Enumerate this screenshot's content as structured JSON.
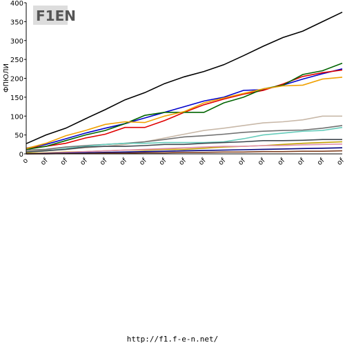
{
  "chart_data": {
    "type": "line",
    "logo": "F1EN",
    "y_label": "ФПЮЛИ",
    "footer": "http://f1.f-e-n.net/",
    "categories": [
      "o",
      "of",
      "of",
      "of",
      "of",
      "of",
      "of",
      "of",
      "of",
      "of",
      "of",
      "of",
      "of",
      "of",
      "of",
      "of",
      "of"
    ],
    "ylim": [
      0,
      400
    ],
    "yticks": [
      0,
      50,
      100,
      150,
      200,
      250,
      300,
      350,
      400
    ],
    "grid": false,
    "series": [
      {
        "color": "#000000",
        "values": [
          27,
          50,
          68,
          93,
          117,
          143,
          162,
          186,
          204,
          218,
          236,
          260,
          285,
          308,
          325,
          350,
          375
        ]
      },
      {
        "color": "#0000cc",
        "values": [
          15,
          25,
          40,
          55,
          68,
          80,
          95,
          110,
          125,
          140,
          150,
          168,
          170,
          182,
          198,
          212,
          225
        ]
      },
      {
        "color": "#e00000",
        "values": [
          15,
          20,
          28,
          42,
          52,
          70,
          70,
          88,
          110,
          130,
          145,
          158,
          168,
          185,
          205,
          215,
          222
        ]
      },
      {
        "color": "#006400",
        "values": [
          12,
          20,
          35,
          50,
          62,
          80,
          102,
          110,
          110,
          110,
          135,
          150,
          172,
          182,
          210,
          220,
          240
        ]
      },
      {
        "color": "#f0a000",
        "values": [
          14,
          28,
          48,
          62,
          78,
          85,
          83,
          100,
          112,
          135,
          148,
          160,
          172,
          180,
          182,
          198,
          203
        ]
      },
      {
        "color": "#c8b8a8",
        "values": [
          8,
          10,
          12,
          16,
          20,
          25,
          32,
          42,
          52,
          62,
          68,
          75,
          82,
          85,
          90,
          100,
          100
        ]
      },
      {
        "color": "#707070",
        "values": [
          10,
          12,
          18,
          22,
          25,
          28,
          32,
          38,
          45,
          48,
          52,
          57,
          60,
          62,
          63,
          68,
          75
        ]
      },
      {
        "color": "#66ccbb",
        "values": [
          5,
          8,
          14,
          20,
          25,
          28,
          28,
          30,
          30,
          30,
          32,
          40,
          50,
          55,
          60,
          62,
          70
        ]
      },
      {
        "color": "#404850",
        "values": [
          5,
          8,
          12,
          18,
          20,
          20,
          22,
          25,
          25,
          28,
          30,
          32,
          35,
          35,
          36,
          38,
          38
        ]
      },
      {
        "color": "#c0a000",
        "values": [
          2,
          3,
          5,
          6,
          8,
          10,
          10,
          12,
          12,
          15,
          18,
          20,
          22,
          25,
          28,
          30,
          32
        ]
      },
      {
        "color": "#e090b0",
        "values": [
          0,
          2,
          4,
          6,
          8,
          10,
          12,
          14,
          16,
          18,
          20,
          20,
          22,
          22,
          24,
          25,
          26
        ]
      },
      {
        "color": "#000080",
        "values": [
          0,
          1,
          2,
          3,
          4,
          5,
          6,
          7,
          8,
          9,
          10,
          11,
          12,
          13,
          14,
          15,
          16
        ]
      },
      {
        "color": "#804020",
        "values": [
          0,
          0,
          1,
          1,
          2,
          2,
          3,
          3,
          4,
          4,
          5,
          5,
          6,
          6,
          7,
          7,
          8
        ]
      }
    ]
  }
}
